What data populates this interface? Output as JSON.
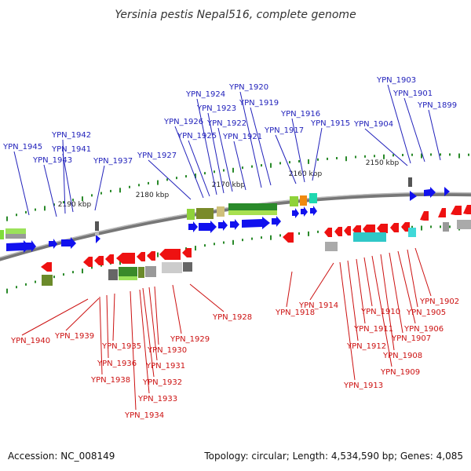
{
  "title": "Yersinia pestis Nepal516, complete genome",
  "footer": {
    "accession": "Accession: NC_008149",
    "stats": "Topology: circular; Length: 4,534,590 bp; Genes: 4,085"
  },
  "colors": {
    "forward": "#0000ee",
    "reverse": "#ee0000",
    "forward_label": "#2222bb",
    "reverse_label": "#cc1111",
    "backbone": "#888888",
    "tick": "#228822"
  },
  "scale_labels": [
    "2190 kbp",
    "2180 kbp",
    "2170 kbp",
    "2160 kbp",
    "2150 kbp"
  ],
  "forward_genes": [
    "YPN_1945",
    "YPN_1943",
    "YPN_1942",
    "YPN_1941",
    "YPN_1937",
    "YPN_1927",
    "YPN_1926",
    "YPN_1925",
    "YPN_1924",
    "YPN_1923",
    "YPN_1922",
    "YPN_1921",
    "YPN_1920",
    "YPN_1919",
    "YPN_1917",
    "YPN_1916",
    "YPN_1915",
    "YPN_1904",
    "YPN_1903",
    "YPN_1901",
    "YPN_1899"
  ],
  "reverse_genes": [
    "YPN_1940",
    "YPN_1939",
    "YPN_1938",
    "YPN_1936",
    "YPN_1935",
    "YPN_1934",
    "YPN_1933",
    "YPN_1932",
    "YPN_1931",
    "YPN_1930",
    "YPN_1929",
    "YPN_1928",
    "YPN_1918",
    "YPN_1914",
    "YPN_1913",
    "YPN_1912",
    "YPN_1911",
    "YPN_1910",
    "YPN_1909",
    "YPN_1908",
    "YPN_1907",
    "YPN_1906",
    "YPN_1905",
    "YPN_1902"
  ]
}
